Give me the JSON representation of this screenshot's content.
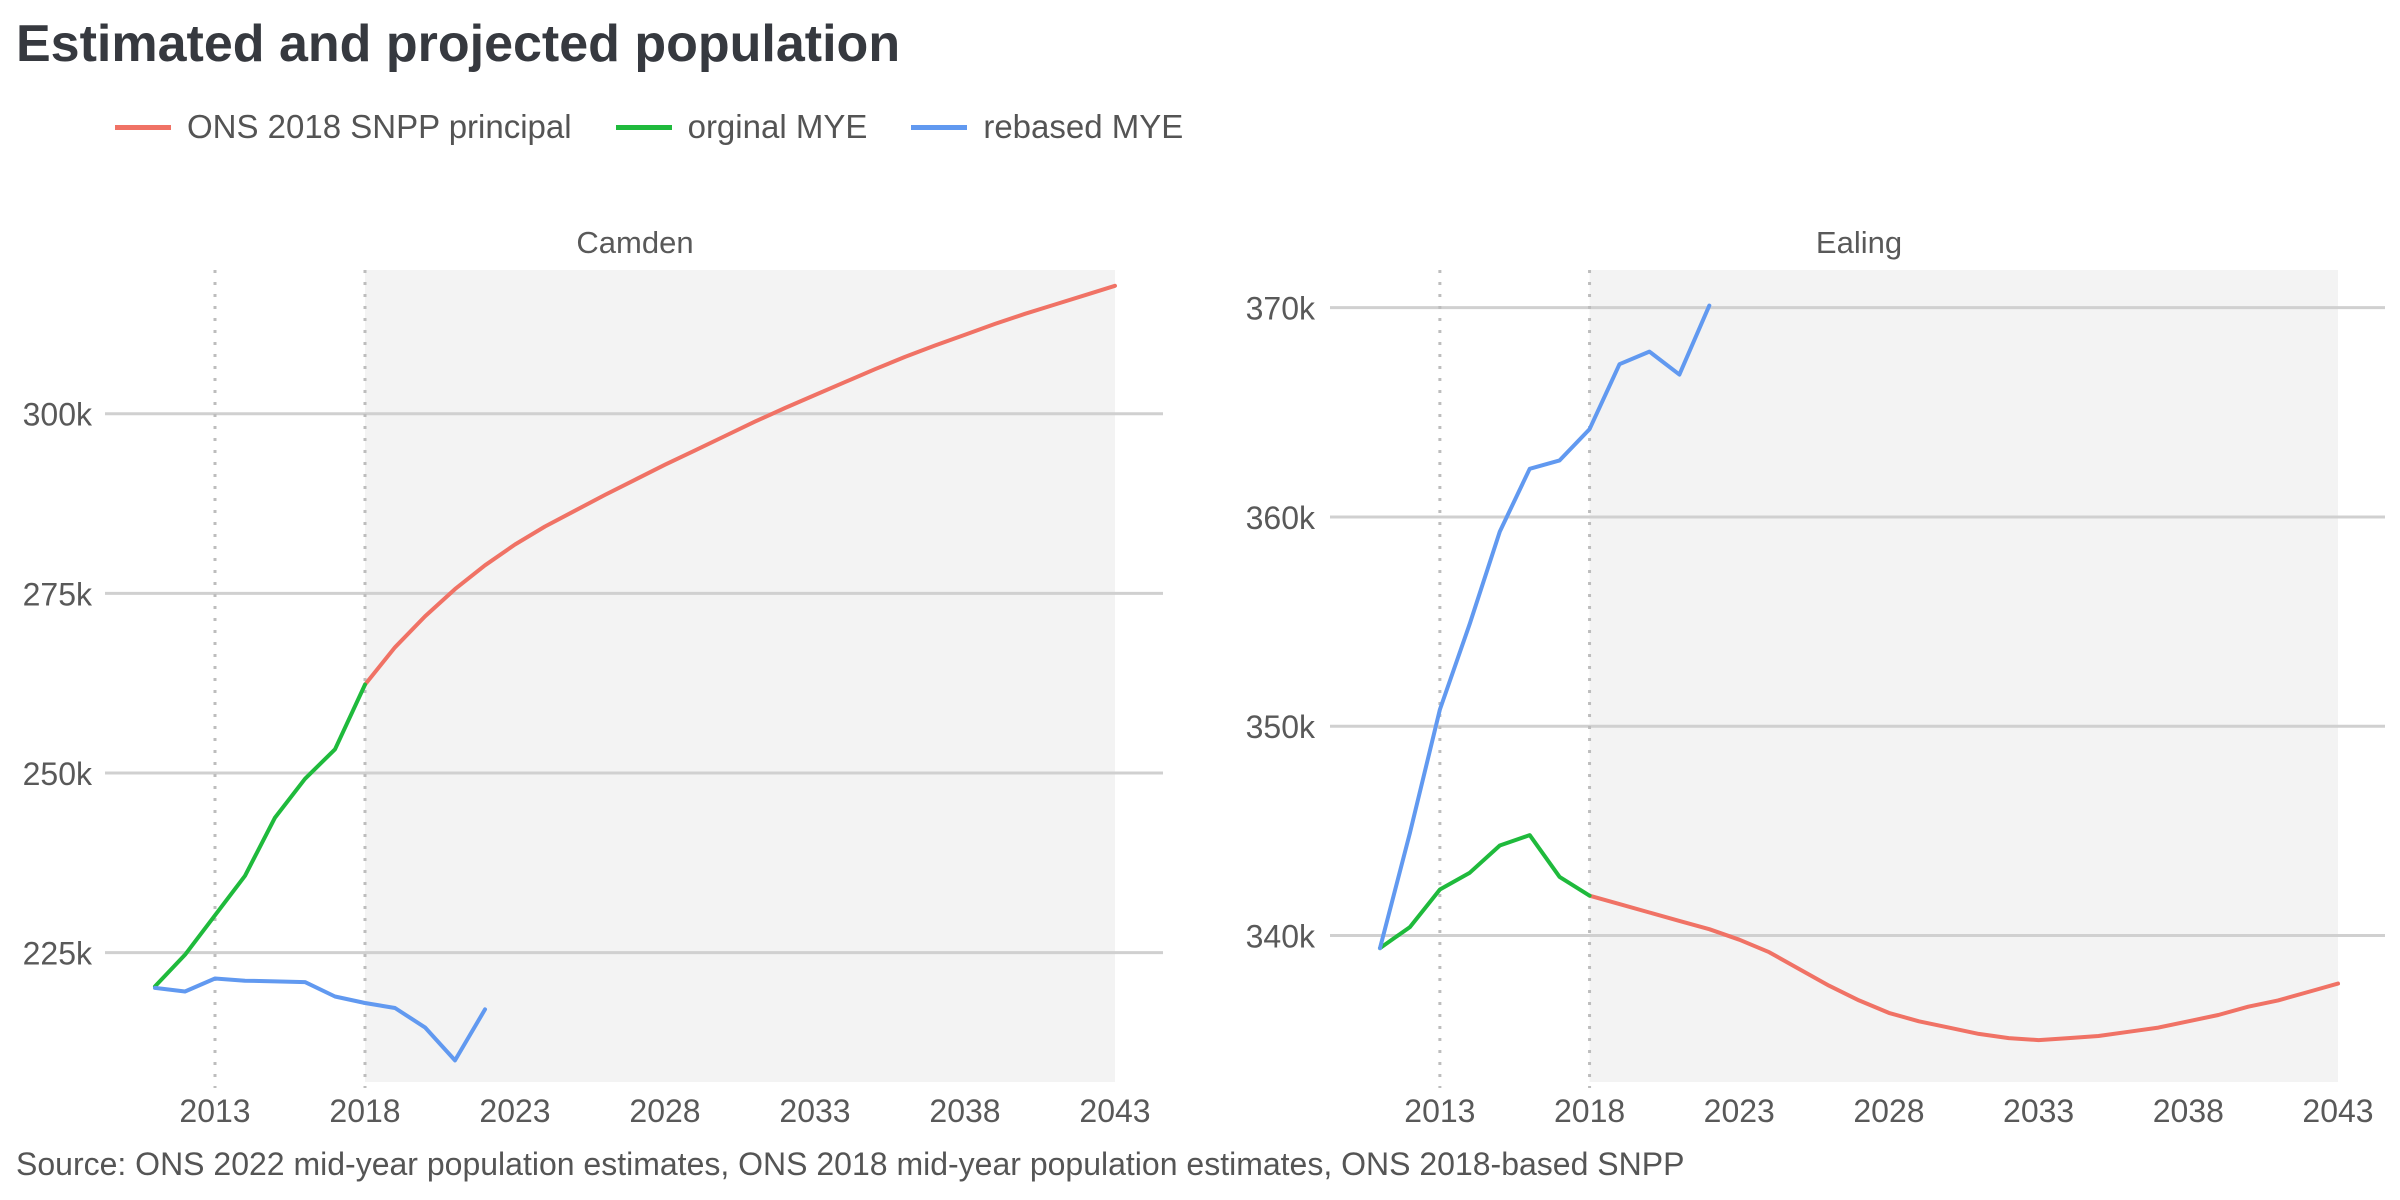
{
  "title": "Estimated and projected population",
  "source": "Source: ONS 2022 mid-year population estimates, ONS 2018 mid-year population estimates, ONS 2018-based SNPP",
  "legend": [
    {
      "label": "ONS 2018 SNPP principal",
      "color": "#F07265"
    },
    {
      "label": "orginal MYE",
      "color": "#1FBA3C"
    },
    {
      "label": "rebased MYE",
      "color": "#6199F0"
    }
  ],
  "colors": {
    "background": "#ffffff",
    "panel_shade": "#f3f3f3",
    "gridline": "#d0d0d0",
    "vline": "#bdbdbd",
    "axis_text": "#595959"
  },
  "chart_data": [
    {
      "type": "line",
      "title": "Camden",
      "xlim": [
        2011,
        2043
      ],
      "ylim": [
        207000,
        320000
      ],
      "xticks": [
        2013,
        2018,
        2023,
        2028,
        2033,
        2038,
        2043
      ],
      "xtick_labels": [
        "2013",
        "2018",
        "2023",
        "2028",
        "2033",
        "2038",
        "2043"
      ],
      "yticks": [
        225000,
        250000,
        275000,
        300000
      ],
      "ytick_labels": [
        "225k",
        "250k",
        "275k",
        "300k"
      ],
      "vlines": [
        2013,
        2018
      ],
      "shaded_from": 2018,
      "series": [
        {
          "name": "ONS 2018 SNPP principal",
          "color": "#F07265",
          "x": [
            2018,
            2019,
            2020,
            2021,
            2022,
            2023,
            2024,
            2025,
            2026,
            2027,
            2028,
            2029,
            2030,
            2031,
            2032,
            2033,
            2034,
            2035,
            2036,
            2037,
            2038,
            2039,
            2040,
            2041,
            2042,
            2043
          ],
          "y": [
            262300,
            267500,
            271800,
            275600,
            278900,
            281800,
            284300,
            286500,
            288700,
            290800,
            292900,
            294900,
            296900,
            298900,
            300800,
            302600,
            304400,
            306200,
            307900,
            309500,
            311000,
            312500,
            313900,
            315200,
            316500,
            317800
          ]
        },
        {
          "name": "orginal MYE",
          "color": "#1FBA3C",
          "x": [
            2011,
            2012,
            2013,
            2014,
            2015,
            2016,
            2017,
            2018
          ],
          "y": [
            220300,
            224700,
            230200,
            235700,
            243800,
            249200,
            253300,
            262300
          ]
        },
        {
          "name": "rebased MYE",
          "color": "#6199F0",
          "x": [
            2011,
            2012,
            2013,
            2014,
            2015,
            2016,
            2017,
            2018,
            2019,
            2020,
            2021,
            2022
          ],
          "y": [
            220100,
            219600,
            221400,
            221100,
            221000,
            220900,
            218900,
            218000,
            217300,
            214600,
            210000,
            217100
          ]
        }
      ]
    },
    {
      "type": "line",
      "title": "Ealing",
      "xlim": [
        2011,
        2043
      ],
      "ylim": [
        333000,
        371800
      ],
      "xticks": [
        2013,
        2018,
        2023,
        2028,
        2033,
        2038,
        2043
      ],
      "xtick_labels": [
        "2013",
        "2018",
        "2023",
        "2028",
        "2033",
        "2038",
        "2043"
      ],
      "yticks": [
        340000,
        350000,
        360000,
        370000
      ],
      "ytick_labels": [
        "340k",
        "350k",
        "360k",
        "370k"
      ],
      "vlines": [
        2013,
        2018
      ],
      "shaded_from": 2018,
      "series": [
        {
          "name": "ONS 2018 SNPP principal",
          "color": "#F07265",
          "x": [
            2018,
            2019,
            2020,
            2021,
            2022,
            2023,
            2024,
            2025,
            2026,
            2027,
            2028,
            2029,
            2030,
            2031,
            2032,
            2033,
            2034,
            2035,
            2036,
            2037,
            2038,
            2039,
            2040,
            2041,
            2042,
            2043
          ],
          "y": [
            341900,
            341500,
            341100,
            340700,
            340300,
            339800,
            339200,
            338400,
            337600,
            336900,
            336300,
            335900,
            335600,
            335300,
            335100,
            335000,
            335100,
            335200,
            335400,
            335600,
            335900,
            336200,
            336600,
            336900,
            337300,
            337700
          ]
        },
        {
          "name": "orginal MYE",
          "color": "#1FBA3C",
          "x": [
            2011,
            2012,
            2013,
            2014,
            2015,
            2016,
            2017,
            2018
          ],
          "y": [
            339400,
            340400,
            342200,
            343000,
            344300,
            344800,
            342800,
            341900
          ]
        },
        {
          "name": "rebased MYE",
          "color": "#6199F0",
          "x": [
            2011,
            2012,
            2013,
            2014,
            2015,
            2016,
            2017,
            2018,
            2019,
            2020,
            2021,
            2022
          ],
          "y": [
            339400,
            344900,
            350800,
            354900,
            359300,
            362300,
            362700,
            364200,
            367300,
            367900,
            366800,
            370100
          ]
        }
      ]
    }
  ]
}
